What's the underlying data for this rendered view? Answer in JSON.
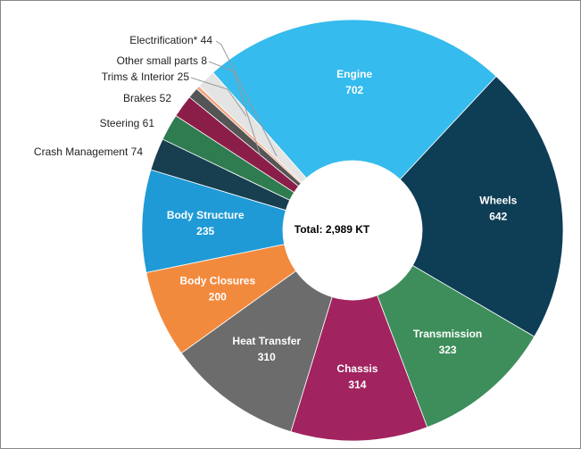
{
  "chart_data": {
    "type": "pie",
    "center_text": "Total: 2,989 KT",
    "categories": [
      "Engine",
      "Wheels",
      "Transmission",
      "Chassis",
      "Heat Transfer",
      "Body Closures",
      "Body Structure",
      "Crash Management",
      "Steering",
      "Brakes",
      "Trims & Interior",
      "Other small parts",
      "Electrification*"
    ],
    "values": [
      702,
      642,
      323,
      314,
      310,
      200,
      235,
      74,
      61,
      52,
      25,
      8,
      44
    ],
    "colors": [
      "#35bbed",
      "#0e3d56",
      "#3e8e5b",
      "#a1235f",
      "#6c6c6c",
      "#f28a3e",
      "#1f9ad6",
      "#183f50",
      "#2f7c50",
      "#8b1e49",
      "#555555",
      "#f4a582",
      "#e4e4e4"
    ]
  }
}
